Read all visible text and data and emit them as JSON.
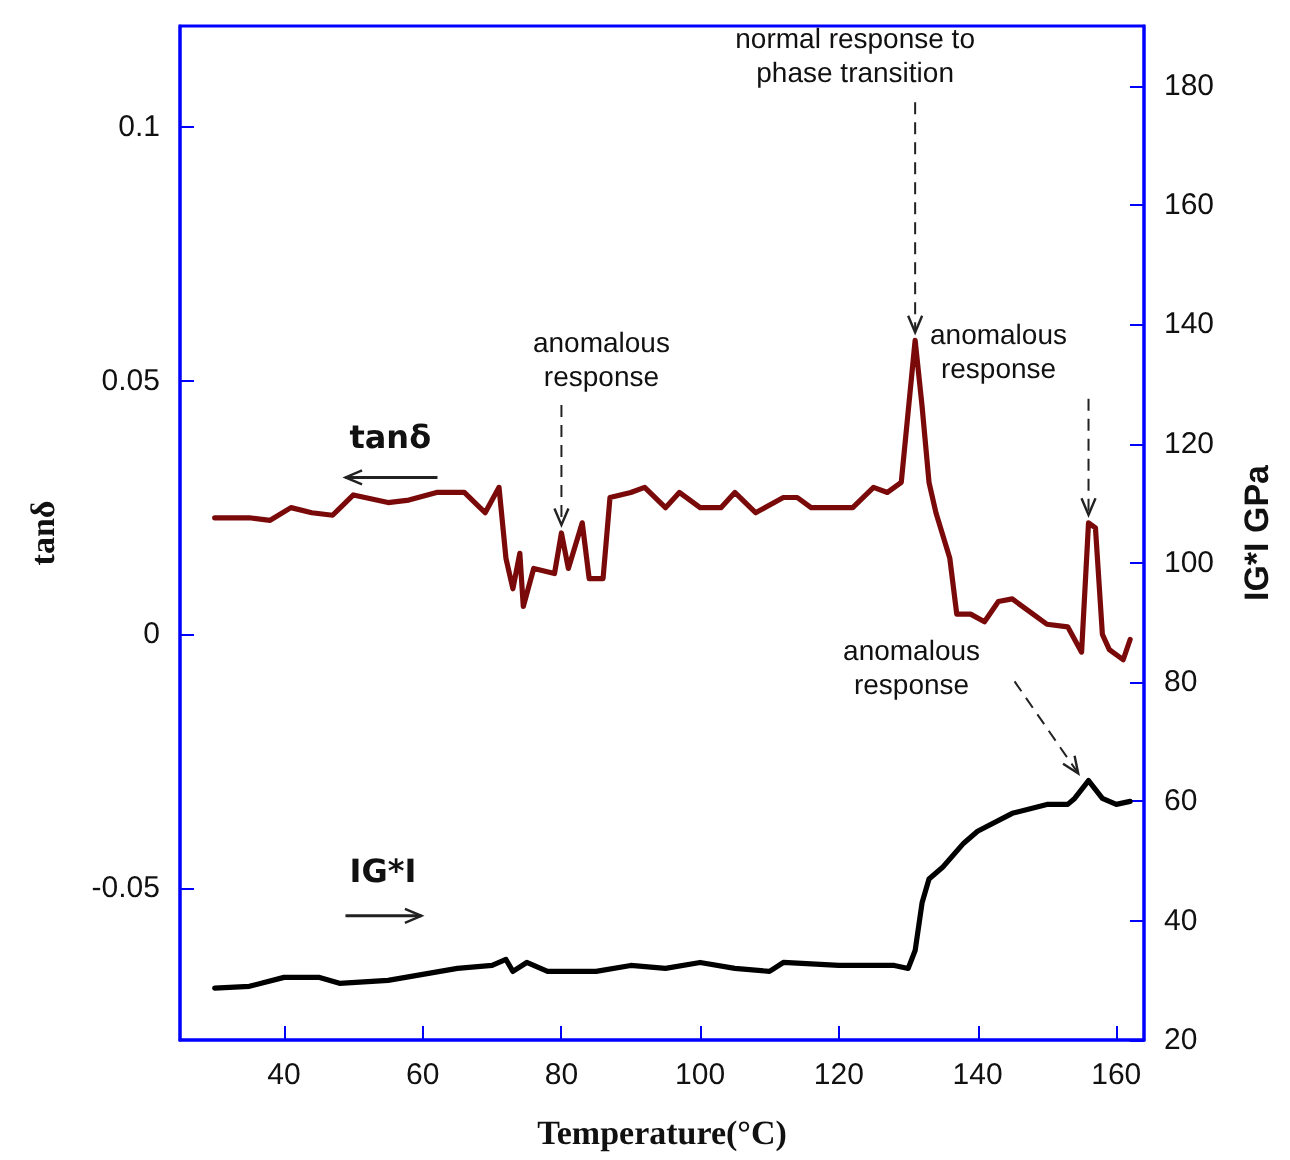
{
  "chart_data": {
    "type": "line",
    "xlabel": "Temperature(°C)",
    "ylabel": "tanδ",
    "y2label": "IG*I GPa",
    "xlim": [
      25,
      164
    ],
    "xticks": [
      40,
      60,
      80,
      100,
      120,
      140,
      160
    ],
    "ylim": [
      -0.08,
      0.12
    ],
    "yticks": [
      -0.05,
      0,
      0.05,
      0.1
    ],
    "y2lim": [
      20,
      190
    ],
    "y2ticks": [
      20,
      40,
      60,
      80,
      100,
      120,
      140,
      160,
      180
    ],
    "grid": false,
    "legend": false,
    "marker": "none",
    "line_style": "solid",
    "series": [
      {
        "name": "tanδ",
        "color": "#7a0a0a",
        "x": [
          30,
          35,
          38,
          41,
          44,
          47,
          50,
          55,
          58,
          62,
          66,
          69,
          71,
          72,
          73,
          74,
          74.5,
          76,
          79,
          80,
          81,
          83,
          84,
          86,
          87,
          90,
          92,
          95,
          97,
          100,
          103,
          105,
          108,
          112,
          114,
          116,
          122,
          125,
          127,
          129,
          130,
          131,
          132,
          133,
          134,
          136,
          137,
          139,
          141,
          143,
          145,
          148,
          150,
          153,
          155,
          156,
          157,
          158,
          159,
          161,
          162
        ],
        "values": [
          0.023,
          0.023,
          0.0225,
          0.025,
          0.024,
          0.0235,
          0.0275,
          0.026,
          0.0265,
          0.028,
          0.028,
          0.024,
          0.029,
          0.015,
          0.009,
          0.016,
          0.0055,
          0.013,
          0.012,
          0.02,
          0.013,
          0.022,
          0.011,
          0.011,
          0.027,
          0.028,
          0.029,
          0.025,
          0.028,
          0.025,
          0.025,
          0.028,
          0.024,
          0.027,
          0.027,
          0.025,
          0.025,
          0.029,
          0.028,
          0.03,
          0.044,
          0.058,
          0.045,
          0.03,
          0.024,
          0.015,
          0.004,
          0.004,
          0.0025,
          0.0065,
          0.007,
          0.004,
          0.002,
          0.0015,
          -0.0035,
          0.022,
          0.021,
          0,
          -0.003,
          -0.005,
          -0.001
        ]
      },
      {
        "name": "IG*I",
        "color": "#000000",
        "axis": "y2",
        "x": [
          30,
          35,
          40,
          45,
          48,
          55,
          60,
          65,
          70,
          72,
          73,
          75,
          78,
          85,
          90,
          95,
          100,
          105,
          110,
          112,
          120,
          128,
          130,
          131,
          132,
          133,
          135,
          138,
          140,
          145,
          150,
          153,
          154,
          156,
          158,
          160,
          162
        ],
        "values": [
          28.7,
          29,
          30.5,
          30.5,
          29.5,
          30,
          31,
          32,
          32.5,
          33.5,
          31.5,
          33,
          31.5,
          31.5,
          32.5,
          32,
          33,
          32,
          31.5,
          33,
          32.5,
          32.5,
          32,
          35,
          43,
          47,
          49,
          53,
          55,
          58,
          59.5,
          59.5,
          60.5,
          63.5,
          60.5,
          59.5,
          60
        ]
      }
    ],
    "annotations": [
      {
        "text": "anomalous response",
        "x": 80,
        "y": 0.02
      },
      {
        "text": "normal response to phase transition",
        "x": 131,
        "y": 0.058
      },
      {
        "text": "anomalous response",
        "x": 156,
        "y": 0.022
      },
      {
        "text": "anomalous response",
        "x": 155,
        "y": -0.029
      }
    ]
  }
}
